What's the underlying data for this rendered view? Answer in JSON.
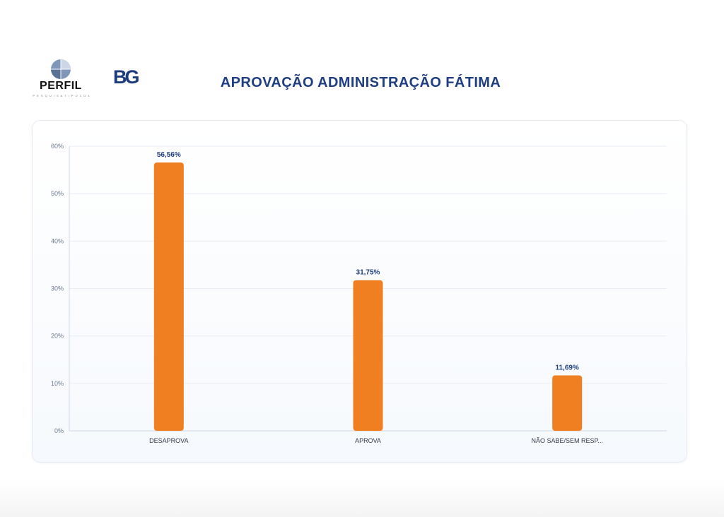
{
  "header": {
    "logo_perfil": {
      "text": "PERFIL",
      "tagline": "P E S Q U I S A   T I P O   1 O 4"
    },
    "logo_bg": {
      "text": "BG"
    },
    "title": "APROVAÇÃO ADMINISTRAÇÃO FÁTIMA"
  },
  "colors": {
    "bar": "#f07f22",
    "label": "#1f3f82",
    "title": "#1f3f82",
    "axis_text": "#6b7a8f",
    "grid": "#e9edf3"
  },
  "chart_data": {
    "type": "bar",
    "title": "",
    "xlabel": "",
    "ylabel": "",
    "categories": [
      "DESAPROVA",
      "APROVA",
      "NÃO SABE/SEM RESP..."
    ],
    "values": [
      56.56,
      31.75,
      11.69
    ],
    "value_labels": [
      "56,56%",
      "31,75%",
      "11,69%"
    ],
    "yticks": [
      0,
      10,
      20,
      30,
      40,
      50,
      60
    ],
    "ytick_labels": [
      "0%",
      "10%",
      "20%",
      "30%",
      "40%",
      "50%",
      "60%"
    ],
    "ylim": [
      0,
      60
    ],
    "grid": true,
    "legend": "none"
  }
}
